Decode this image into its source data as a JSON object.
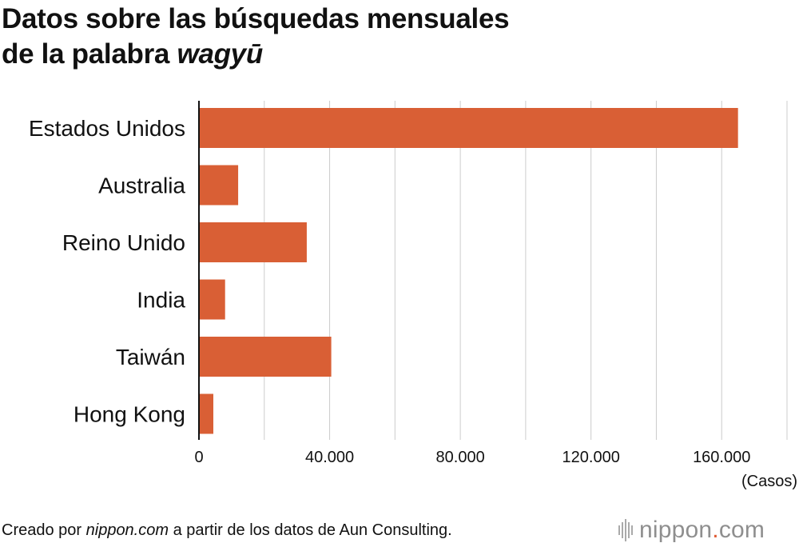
{
  "header": {
    "title_line1": "Datos sobre las búsquedas mensuales",
    "title_line2_prefix": "de la palabra ",
    "title_line2_italic": "wagyū"
  },
  "chart_data": {
    "type": "bar",
    "orientation": "horizontal",
    "categories": [
      "Estados Unidos",
      "Australia",
      "Reino Unido",
      "India",
      "Taiwán",
      "Hong Kong"
    ],
    "values": [
      165000,
      12000,
      33000,
      8000,
      40500,
      4400
    ],
    "xlim": [
      0,
      180000
    ],
    "xticks": [
      0,
      40000,
      80000,
      120000,
      160000
    ],
    "xtick_labels": [
      "0",
      "40.000",
      "80.000",
      "120.000",
      "160.000"
    ],
    "xlabel": "(Casos)",
    "grid": "vertical",
    "bar_color": "#d95f35"
  },
  "footer": {
    "note_prefix": "Creado por ",
    "note_italic": "nippon.com",
    "note_suffix": " a partir de los datos de Aun Consulting.",
    "brand_name": "nippon",
    "brand_dot": ".",
    "brand_tld": "com"
  }
}
